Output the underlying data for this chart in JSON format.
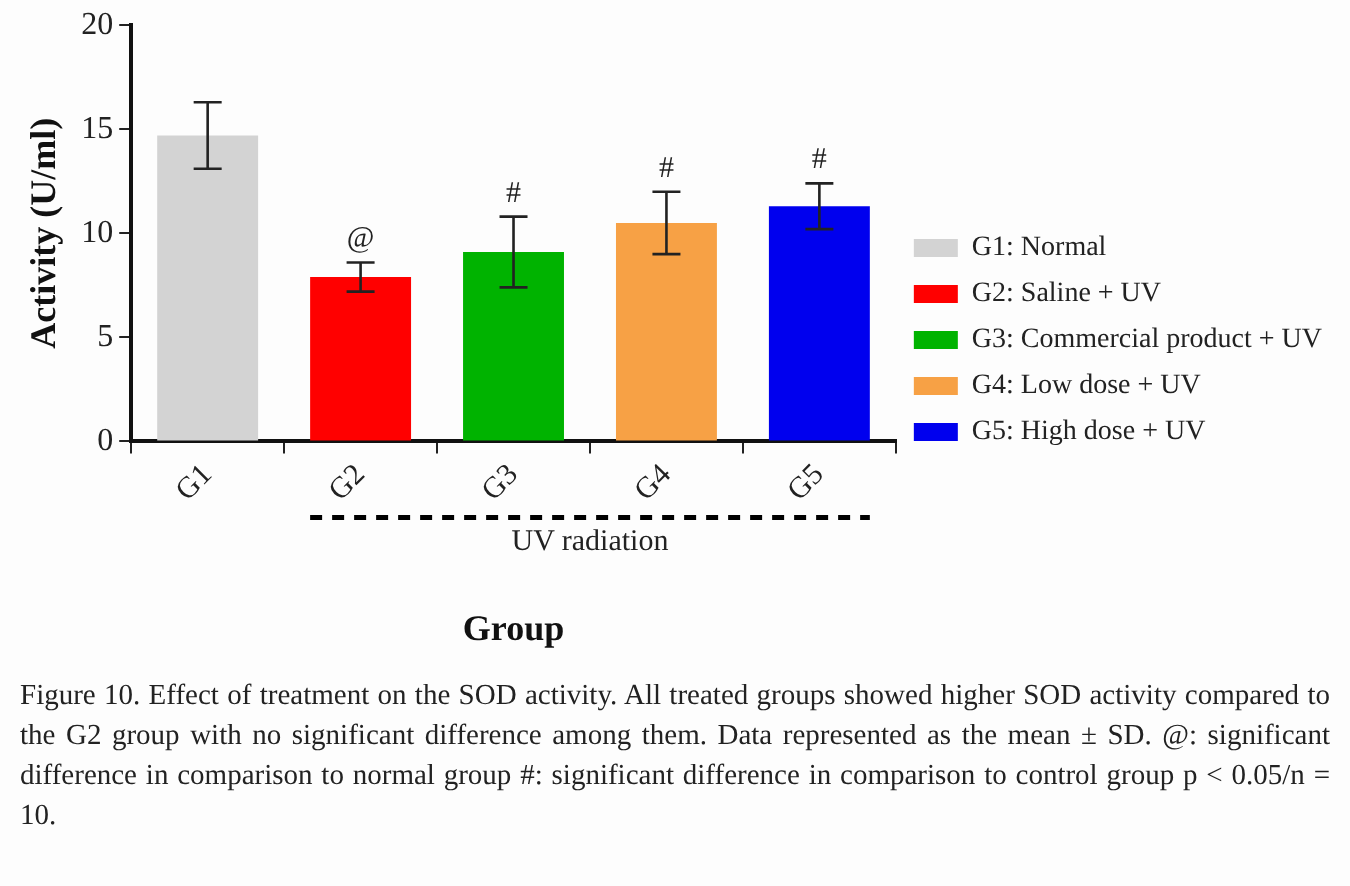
{
  "chart_data": {
    "type": "bar",
    "ylabel": "Activity (U/ml)",
    "xlabel": "Group",
    "categories": [
      "G1",
      "G2",
      "G3",
      "G4",
      "G5"
    ],
    "series": [
      {
        "name": "G1: Normal",
        "color": "#d3d3d3",
        "values": [
          14.7,
          null,
          null,
          null,
          null
        ],
        "errors": [
          1.6,
          null,
          null,
          null,
          null
        ]
      },
      {
        "name": "G2: Saline + UV",
        "color": "#ff0000",
        "values": [
          null,
          7.9,
          null,
          null,
          null
        ],
        "value_labels": [
          null,
          "@",
          null,
          null,
          null
        ],
        "errors": [
          null,
          0.7,
          null,
          null,
          null
        ]
      },
      {
        "name": "G3: Commercial product + UV",
        "color": "#00b300",
        "values": [
          null,
          null,
          9.1,
          null,
          null
        ],
        "value_labels": [
          null,
          null,
          "#",
          null,
          null
        ],
        "errors": [
          null,
          null,
          1.7,
          null,
          null
        ]
      },
      {
        "name": "G4: Low dose + UV",
        "color": "#f7a145",
        "values": [
          null,
          null,
          null,
          10.5,
          null
        ],
        "value_labels": [
          null,
          null,
          null,
          "#",
          null
        ],
        "errors": [
          null,
          null,
          null,
          1.5,
          null
        ]
      },
      {
        "name": "G5: High dose + UV",
        "color": "#0000ee",
        "values": [
          null,
          null,
          null,
          null,
          11.3
        ],
        "value_labels": [
          null,
          null,
          null,
          null,
          "#"
        ],
        "errors": [
          null,
          null,
          null,
          null,
          1.1
        ]
      }
    ],
    "ylim": [
      0,
      20
    ],
    "yticks": [
      0,
      5,
      10,
      15,
      20
    ],
    "grid": false,
    "legend": "right",
    "annotations": [
      "UV radiation",
      "Figure 10. Effect of treatment on the SOD activity. All treated groups showed higher SOD activity compared to the G2 group with no significant difference among them. Data represented as the mean ± SD. @: significant difference in comparison to normal group #: significant difference in comparison to control group p < 0.05/n = 10."
    ]
  }
}
